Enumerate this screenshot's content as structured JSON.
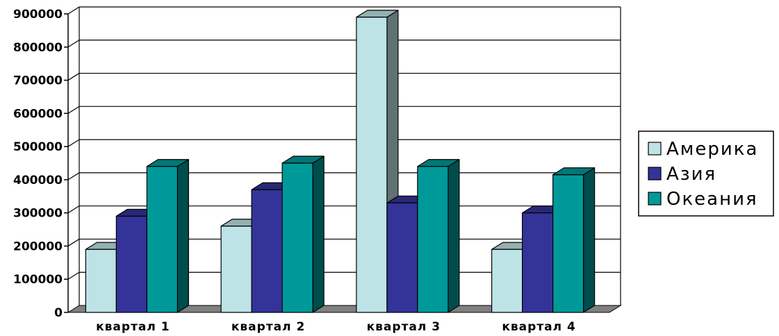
{
  "chart_data": {
    "type": "bar",
    "style": "3d-clustered-column",
    "categories": [
      "квартал 1",
      "квартал 2",
      "квартал 3",
      "квартал 4"
    ],
    "series": [
      {
        "name": "Америка",
        "values": [
          190000,
          260000,
          890000,
          190000
        ],
        "color": "#bde3e6"
      },
      {
        "name": "Азия",
        "values": [
          290000,
          370000,
          330000,
          300000
        ],
        "color": "#333399"
      },
      {
        "name": "Океания",
        "values": [
          440000,
          450000,
          440000,
          415000
        ],
        "color": "#009999"
      }
    ],
    "yticks": [
      "0",
      "100000",
      "200000",
      "300000",
      "400000",
      "500000",
      "600000",
      "700000",
      "800000",
      "900000"
    ],
    "ylim": [
      0,
      900000
    ],
    "grid": true,
    "legend_position": "right"
  }
}
